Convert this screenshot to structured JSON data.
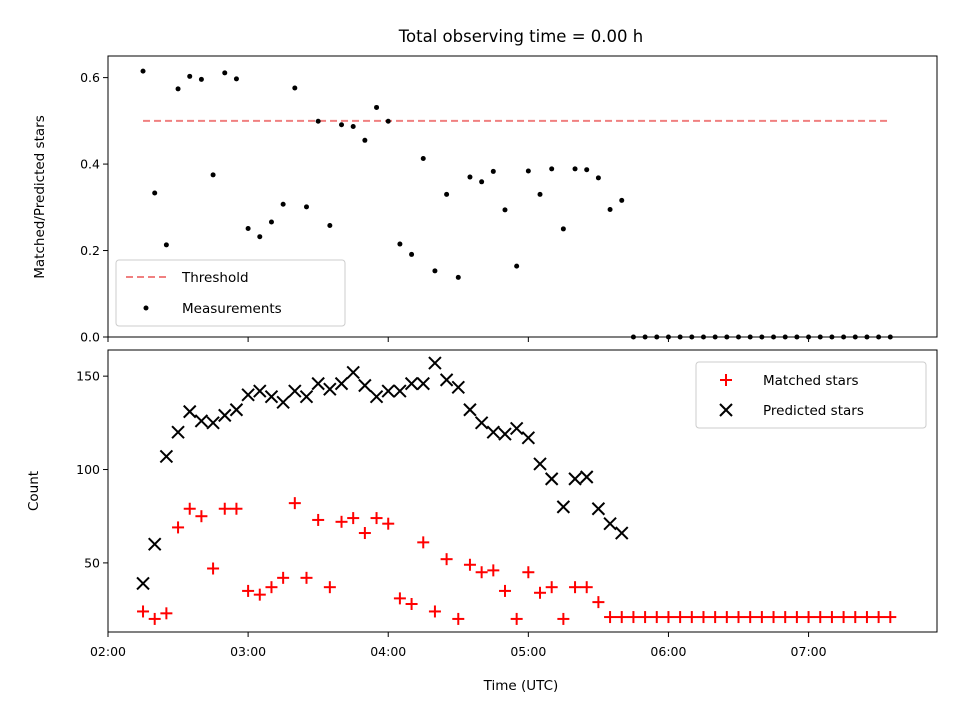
{
  "chart_data": [
    {
      "type": "scatter",
      "title": "Total observing time = 0.00 h",
      "ylabel": "Matched/Predicted stars",
      "xlabel": "",
      "ylim": [
        0,
        0.65
      ],
      "xlim": [
        "02:00",
        "07:55"
      ],
      "yticks": [
        "0.0",
        "0.2",
        "0.4",
        "0.6"
      ],
      "ytick_values": [
        0,
        0.2,
        0.4,
        0.6
      ],
      "legend_position": "lower-left",
      "grid": false,
      "threshold": {
        "name": "Threshold",
        "value": 0.5,
        "x_start": "02:15",
        "x_end": "07:35",
        "color": "#f08080",
        "style": "dashed"
      },
      "series": [
        {
          "name": "Measurements",
          "color": "#000000",
          "x": [
            "02:15",
            "02:20",
            "02:25",
            "02:30",
            "02:35",
            "02:40",
            "02:45",
            "02:50",
            "02:55",
            "03:00",
            "03:05",
            "03:10",
            "03:15",
            "03:20",
            "03:25",
            "03:30",
            "03:35",
            "03:40",
            "03:45",
            "03:50",
            "03:55",
            "04:00",
            "04:05",
            "04:10",
            "04:15",
            "04:20",
            "04:25",
            "04:30",
            "04:35",
            "04:40",
            "04:45",
            "04:50",
            "04:55",
            "05:00",
            "05:05",
            "05:10",
            "05:15",
            "05:20",
            "05:25",
            "05:30",
            "05:35",
            "05:40",
            "05:45",
            "05:50",
            "05:55",
            "06:00",
            "06:05",
            "06:10",
            "06:15",
            "06:20",
            "06:25",
            "06:30",
            "06:35",
            "06:40",
            "06:45",
            "06:50",
            "06:55",
            "07:00",
            "07:05",
            "07:10",
            "07:15",
            "07:20",
            "07:25",
            "07:30",
            "07:35"
          ],
          "y": [
            0.615,
            0.333,
            0.213,
            0.574,
            0.603,
            0.596,
            0.375,
            0.611,
            0.597,
            0.251,
            0.232,
            0.266,
            0.307,
            0.576,
            0.301,
            0.499,
            0.258,
            0.491,
            0.487,
            0.455,
            0.531,
            0.499,
            0.215,
            0.191,
            0.413,
            0.153,
            0.33,
            0.138,
            0.37,
            0.359,
            0.383,
            0.294,
            0.164,
            0.384,
            0.33,
            0.389,
            0.25,
            0.389,
            0.387,
            0.368,
            0.295,
            0.316,
            0,
            0,
            0,
            0,
            0,
            0,
            0,
            0,
            0,
            0,
            0,
            0,
            0,
            0,
            0,
            0,
            0,
            0,
            0,
            0,
            0,
            0,
            0
          ]
        }
      ]
    },
    {
      "type": "scatter",
      "title": "",
      "ylabel": "Count",
      "xlabel": "Time (UTC)",
      "ylim": [
        13,
        164
      ],
      "xlim": [
        "02:00",
        "07:55"
      ],
      "yticks": [
        "50",
        "100",
        "150"
      ],
      "ytick_values": [
        50,
        100,
        150
      ],
      "xticks": [
        "02:00",
        "03:00",
        "04:00",
        "05:00",
        "06:00",
        "07:00"
      ],
      "legend_position": "upper-right",
      "grid": false,
      "series": [
        {
          "name": "Matched stars",
          "color": "#ff0000",
          "marker": "plus",
          "x": [
            "02:15",
            "02:20",
            "02:25",
            "02:30",
            "02:35",
            "02:40",
            "02:45",
            "02:50",
            "02:55",
            "03:00",
            "03:05",
            "03:10",
            "03:15",
            "03:20",
            "03:25",
            "03:30",
            "03:35",
            "03:40",
            "03:45",
            "03:50",
            "03:55",
            "04:00",
            "04:05",
            "04:10",
            "04:15",
            "04:20",
            "04:25",
            "04:30",
            "04:35",
            "04:40",
            "04:45",
            "04:50",
            "04:55",
            "05:00",
            "05:05",
            "05:10",
            "05:15",
            "05:20",
            "05:25",
            "05:30",
            "05:35",
            "05:40",
            "05:45",
            "05:50",
            "05:55",
            "06:00",
            "06:05",
            "06:10",
            "06:15",
            "06:20",
            "06:25",
            "06:30",
            "06:35",
            "06:40",
            "06:45",
            "06:50",
            "06:55",
            "07:00",
            "07:05",
            "07:10",
            "07:15",
            "07:20",
            "07:25",
            "07:30",
            "07:35"
          ],
          "y": [
            24,
            20,
            23,
            69,
            79,
            75,
            47,
            79,
            79,
            35,
            33,
            37,
            42,
            82,
            42,
            73,
            37,
            72,
            74,
            66,
            74,
            71,
            31,
            28,
            61,
            24,
            52,
            20,
            49,
            45,
            46,
            35,
            20,
            45,
            34,
            37,
            20,
            37,
            37,
            29,
            21,
            21,
            21,
            21,
            21,
            21,
            21,
            21,
            21,
            21,
            21,
            21,
            21,
            21,
            21,
            21,
            21,
            21,
            21,
            21,
            21,
            21,
            21,
            21,
            21
          ]
        },
        {
          "name": "Predicted stars",
          "color": "#000000",
          "marker": "x",
          "x": [
            "02:15",
            "02:20",
            "02:25",
            "02:30",
            "02:35",
            "02:40",
            "02:45",
            "02:50",
            "02:55",
            "03:00",
            "03:05",
            "03:10",
            "03:15",
            "03:20",
            "03:25",
            "03:30",
            "03:35",
            "03:40",
            "03:45",
            "03:50",
            "03:55",
            "04:00",
            "04:05",
            "04:10",
            "04:15",
            "04:20",
            "04:25",
            "04:30",
            "04:35",
            "04:40",
            "04:45",
            "04:50",
            "04:55",
            "05:00",
            "05:05",
            "05:10",
            "05:15",
            "05:20",
            "05:25",
            "05:30",
            "05:35",
            "05:40"
          ],
          "y": [
            39,
            60,
            107,
            120,
            131,
            126,
            125,
            129,
            132,
            140,
            142,
            139,
            136,
            142,
            139,
            146,
            143,
            146,
            152,
            145,
            139,
            142,
            142,
            146,
            146,
            157,
            148,
            144,
            132,
            125,
            120,
            119,
            122,
            117,
            103,
            95,
            80,
            95,
            96,
            79,
            71,
            66
          ]
        }
      ]
    }
  ]
}
